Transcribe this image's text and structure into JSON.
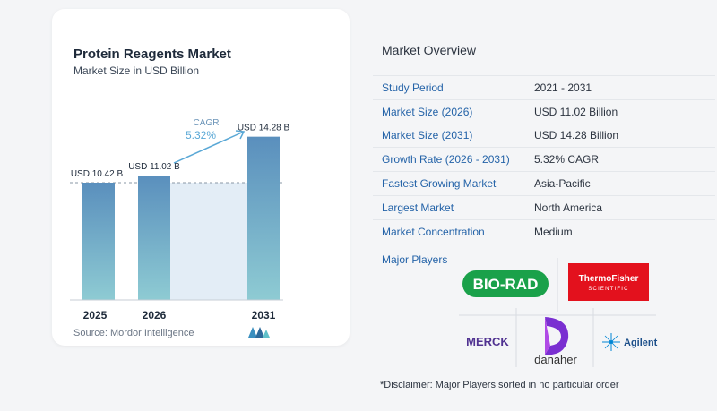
{
  "chart_data": {
    "type": "bar",
    "title": "Protein Reagents Market",
    "subtitle": "Market Size in USD Billion",
    "categories": [
      "2025",
      "2026",
      "2031"
    ],
    "values": [
      10.42,
      11.02,
      14.28
    ],
    "data_labels": [
      "USD 10.42 B",
      "USD 11.02 B",
      "USD 14.28 B"
    ],
    "annotation": {
      "label": "CAGR",
      "value": "5.32%"
    },
    "source": "Source:  Mordor Intelligence",
    "colors": {
      "bar_top": "#5a8fbd",
      "bar_bottom": "#8ecbd3",
      "band": "#e3edf6",
      "accent": "#5aa8d6"
    }
  },
  "overview": {
    "title": "Market Overview",
    "rows": [
      {
        "key": "Study Period",
        "value": "2021 - 2031"
      },
      {
        "key": "Market Size (2026)",
        "value": "USD 11.02 Billion"
      },
      {
        "key": "Market Size (2031)",
        "value": "USD 14.28 Billion"
      },
      {
        "key": "Growth Rate (2026 - 2031)",
        "value": "5.32% CAGR"
      },
      {
        "key": "Fastest Growing Market",
        "value": "Asia-Pacific"
      },
      {
        "key": "Largest Market",
        "value": "North America"
      },
      {
        "key": "Market Concentration",
        "value": "Medium"
      }
    ],
    "major_players_label": "Major Players",
    "players": {
      "biorad": "BIO-RAD",
      "thermo_line1": "ThermoFisher",
      "thermo_line2": "SCIENTIFIC",
      "merck": "MERCK",
      "danaher": "danaher",
      "agilent": "Agilent"
    },
    "disclaimer": "*Disclaimer: Major Players sorted in no particular order"
  }
}
